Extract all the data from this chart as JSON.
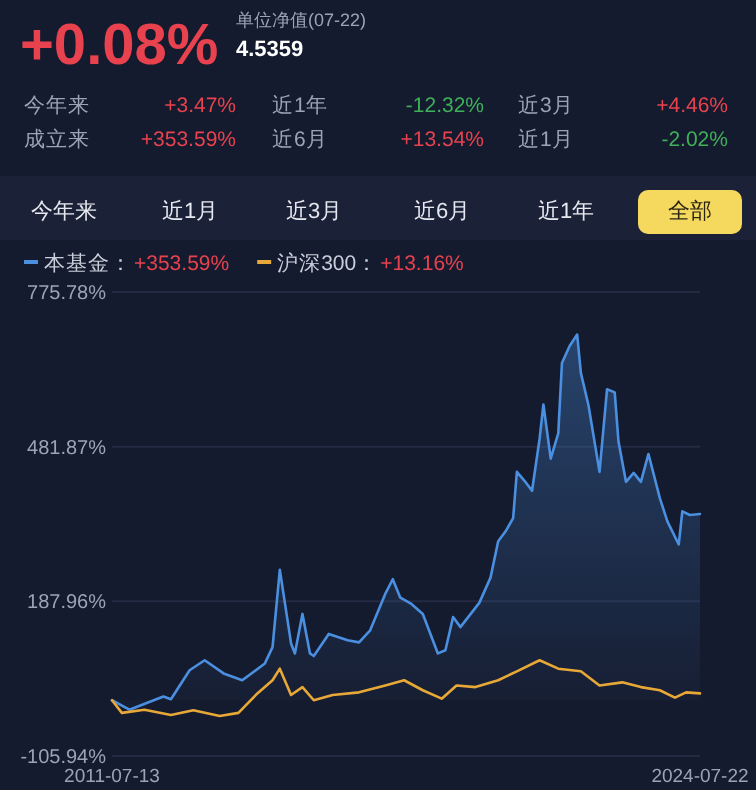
{
  "chart_data": {
    "type": "line",
    "title": "+0.08%",
    "annotations": [
      "单位净值(07-22)",
      "4.5359",
      "今年来",
      "+3.47%",
      "近1年",
      "-12.32%",
      "近3月",
      "+4.46%",
      "成立来",
      "+353.59%",
      "近6月",
      "+13.54%",
      "近1月",
      "-2.02%",
      "今年来",
      "近1月",
      "近3月",
      "近6月",
      "近1年",
      "全部",
      "+353.59%",
      "+13.16%"
    ],
    "series": [
      {
        "name": "本基金：",
        "type": "area",
        "color": "#4a8fe0",
        "x": [
          "2011-07-13",
          "2011-12",
          "2012-09",
          "2012-11",
          "2013-04",
          "2013-08",
          "2014-01",
          "2014-06",
          "2014-12",
          "2015-02",
          "2015-04",
          "2015-07",
          "2015-08",
          "2015-10",
          "2015-12",
          "2016-01",
          "2016-05",
          "2016-10",
          "2017-01",
          "2017-04",
          "2017-08",
          "2017-10",
          "2017-12",
          "2018-03",
          "2018-06",
          "2018-10",
          "2018-12",
          "2019-02",
          "2019-04",
          "2019-09",
          "2019-12",
          "2020-02",
          "2020-04",
          "2020-06",
          "2020-07",
          "2020-09",
          "2020-11",
          "2021-01",
          "2021-02",
          "2021-04",
          "2021-06",
          "2021-07",
          "2021-09",
          "2021-11",
          "2021-12",
          "2022-02",
          "2022-05",
          "2022-07",
          "2022-09",
          "2022-10",
          "2022-12",
          "2023-02",
          "2023-04",
          "2023-06",
          "2023-09",
          "2023-11",
          "2024-02",
          "2024-03",
          "2024-05",
          "2024-07-22"
        ],
        "values": [
          0,
          -18,
          7,
          2,
          57,
          76,
          51,
          38,
          70,
          101,
          248,
          108,
          89,
          164,
          89,
          84,
          126,
          114,
          110,
          133,
          202,
          230,
          195,
          183,
          164,
          89,
          95,
          158,
          139,
          185,
          233,
          302,
          321,
          346,
          434,
          417,
          398,
          497,
          562,
          459,
          507,
          641,
          673,
          695,
          622,
          560,
          434,
          591,
          585,
          492,
          415,
          432,
          415,
          468,
          384,
          340,
          296,
          359,
          352,
          354
        ]
      },
      {
        "name": "沪深300：",
        "type": "line",
        "color": "#e8a838",
        "x": [
          "2011-07-13",
          "2011-10",
          "2012-04",
          "2012-11",
          "2013-05",
          "2013-12",
          "2014-05",
          "2014-10",
          "2015-02",
          "2015-04",
          "2015-07",
          "2015-10",
          "2016-01",
          "2016-06",
          "2017-01",
          "2017-08",
          "2018-01",
          "2018-06",
          "2018-11",
          "2019-03",
          "2019-08",
          "2020-02",
          "2020-07",
          "2021-01",
          "2021-06",
          "2021-12",
          "2022-05",
          "2022-11",
          "2023-04",
          "2023-09",
          "2024-01",
          "2024-04",
          "2024-07-22"
        ],
        "values": [
          0,
          -24,
          -18,
          -28,
          -19,
          -30,
          -24,
          13,
          38,
          60,
          10,
          25,
          0,
          10,
          15,
          28,
          38,
          19,
          3,
          28,
          25,
          38,
          55,
          76,
          60,
          55,
          28,
          34,
          25,
          19,
          5,
          15,
          13
        ]
      }
    ],
    "xlim": [
      "2011-07-13",
      "2024-07-22"
    ],
    "xticks": [
      "2011-07-13",
      "2024-07-22"
    ],
    "ylim": [
      -105.94,
      775.78
    ],
    "yticks": [
      {
        "value": -105.94,
        "label": "-105.94%"
      },
      {
        "value": 187.96,
        "label": "187.96%"
      },
      {
        "value": 481.87,
        "label": "481.87%"
      },
      {
        "value": 775.78,
        "label": "775.78%"
      }
    ],
    "grid": "y",
    "legend": "top left"
  }
}
